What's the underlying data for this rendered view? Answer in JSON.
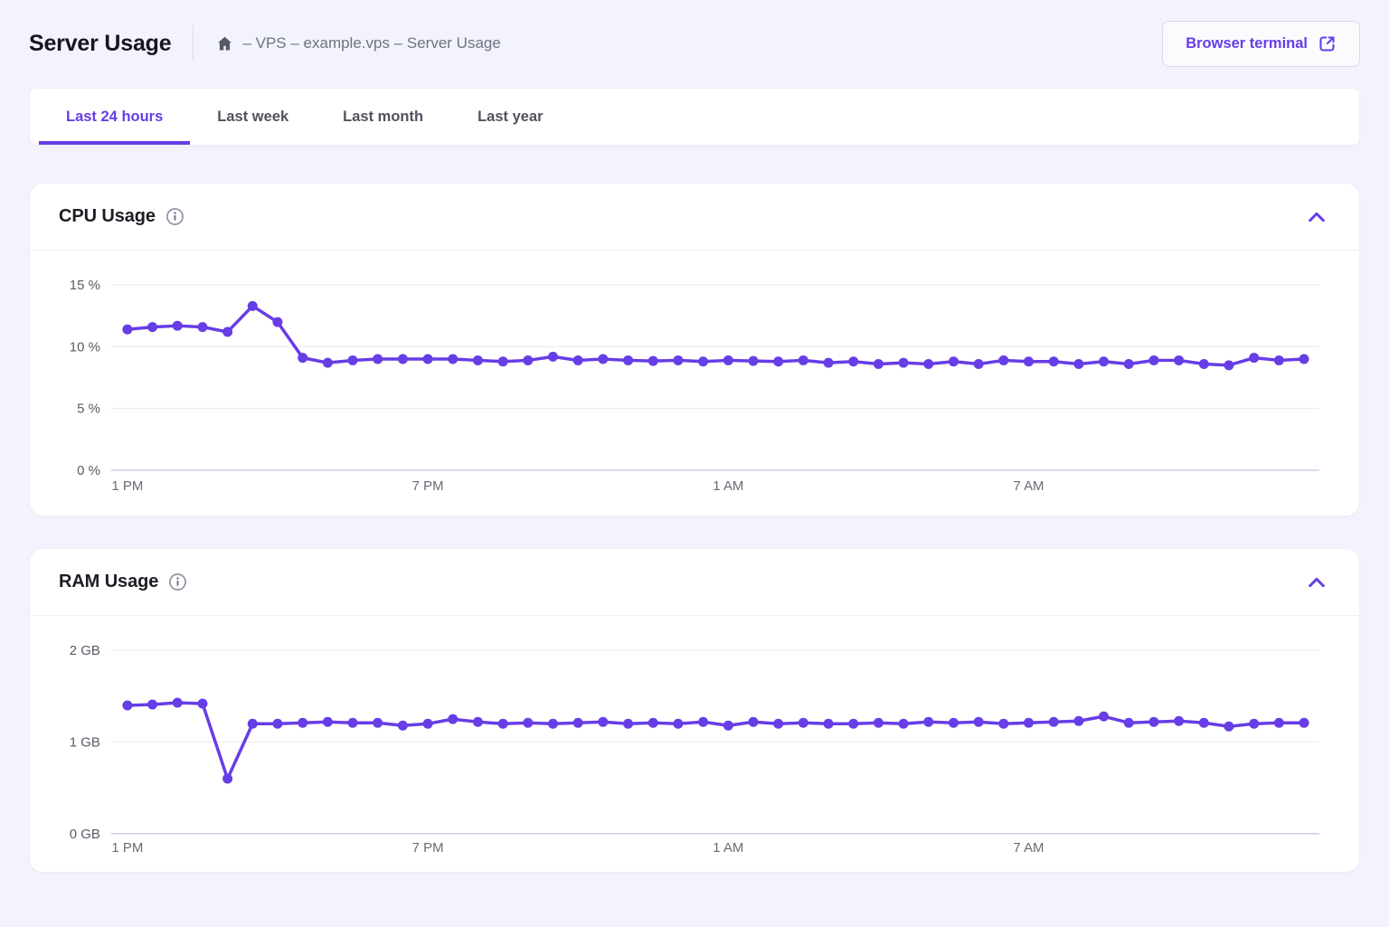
{
  "theme": {
    "accent": "#673de6",
    "page_bg": "#f2f3fc",
    "card_bg": "#ffffff",
    "grid_line": "#ededf0",
    "zero_line": "#c9cfe8",
    "icon_gray": "#565a68"
  },
  "header": {
    "title": "Server Usage",
    "breadcrumb": "– VPS – example.vps – Server Usage",
    "terminal_button": {
      "label": "Browser terminal",
      "icon": "external-link-icon"
    }
  },
  "tabs": [
    {
      "label": "Last 24 hours",
      "active": true
    },
    {
      "label": "Last week",
      "active": false
    },
    {
      "label": "Last month",
      "active": false
    },
    {
      "label": "Last year",
      "active": false
    }
  ],
  "cards": {
    "cpu": {
      "title": "CPU Usage",
      "info_icon": "info-icon",
      "collapse_icon": "chevron-up-icon"
    },
    "ram": {
      "title": "RAM Usage",
      "info_icon": "info-icon",
      "collapse_icon": "chevron-up-icon"
    }
  },
  "chart_data": [
    {
      "type": "line",
      "title": "CPU Usage",
      "unit": "%",
      "ylim": [
        0,
        15
      ],
      "grid": true,
      "legend": "none",
      "line_color": "#673de6",
      "yticks": [
        {
          "value": 15,
          "label": "15 %"
        },
        {
          "value": 10,
          "label": "10 %"
        },
        {
          "value": 5,
          "label": "5 %"
        },
        {
          "value": 0,
          "label": "0 %"
        }
      ],
      "xticks": [
        {
          "index": 0,
          "label": "1 PM"
        },
        {
          "index": 12,
          "label": "7 PM"
        },
        {
          "index": 24,
          "label": "1 AM"
        },
        {
          "index": 36,
          "label": "7 AM"
        }
      ],
      "x_interval_minutes": 30,
      "values": [
        11.4,
        11.6,
        11.7,
        11.6,
        11.2,
        13.3,
        12.0,
        9.1,
        8.7,
        8.9,
        9.0,
        9.0,
        9.0,
        9.0,
        8.9,
        8.8,
        8.9,
        9.2,
        8.9,
        9.0,
        8.9,
        8.85,
        8.9,
        8.8,
        8.9,
        8.85,
        8.8,
        8.9,
        8.7,
        8.8,
        8.6,
        8.7,
        8.6,
        8.8,
        8.6,
        8.9,
        8.8,
        8.8,
        8.6,
        8.8,
        8.6,
        8.9,
        8.9,
        8.6,
        8.5,
        9.1,
        8.9,
        9.0
      ]
    },
    {
      "type": "line",
      "title": "RAM Usage",
      "unit": "GB",
      "ylim": [
        0,
        2
      ],
      "grid": true,
      "legend": "none",
      "line_color": "#673de6",
      "yticks": [
        {
          "value": 2,
          "label": "2 GB"
        },
        {
          "value": 1,
          "label": "1 GB"
        },
        {
          "value": 0,
          "label": "0 GB"
        }
      ],
      "xticks": [
        {
          "index": 0,
          "label": "1 PM"
        },
        {
          "index": 12,
          "label": "7 PM"
        },
        {
          "index": 24,
          "label": "1 AM"
        },
        {
          "index": 36,
          "label": "7 AM"
        }
      ],
      "x_interval_minutes": 30,
      "values": [
        1.4,
        1.41,
        1.43,
        1.42,
        0.6,
        1.2,
        1.2,
        1.21,
        1.22,
        1.21,
        1.21,
        1.18,
        1.2,
        1.25,
        1.22,
        1.2,
        1.21,
        1.2,
        1.21,
        1.22,
        1.2,
        1.21,
        1.2,
        1.22,
        1.18,
        1.22,
        1.2,
        1.21,
        1.2,
        1.2,
        1.21,
        1.2,
        1.22,
        1.21,
        1.22,
        1.2,
        1.21,
        1.22,
        1.23,
        1.28,
        1.21,
        1.22,
        1.23,
        1.21,
        1.17,
        1.2,
        1.21,
        1.21
      ]
    }
  ]
}
